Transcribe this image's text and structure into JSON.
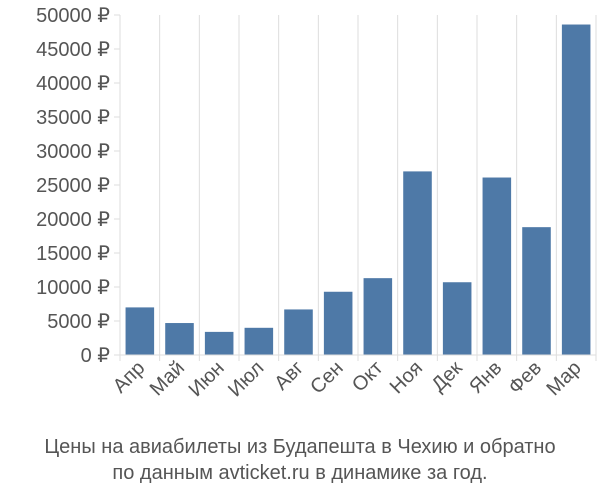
{
  "chart_data": {
    "type": "bar",
    "categories": [
      "Апр",
      "Май",
      "Июн",
      "Июл",
      "Авг",
      "Сен",
      "Окт",
      "Ноя",
      "Дек",
      "Янв",
      "Фев",
      "Мар"
    ],
    "values": [
      7000,
      4700,
      3400,
      4000,
      6700,
      9300,
      11300,
      27000,
      10700,
      26100,
      18800,
      48600
    ],
    "ylim": [
      0,
      50000
    ],
    "y_ticks": [
      0,
      5000,
      10000,
      15000,
      20000,
      25000,
      30000,
      35000,
      40000,
      45000,
      50000
    ],
    "y_tick_labels": [
      "0 ₽",
      "5000 ₽",
      "10000 ₽",
      "15000 ₽",
      "20000 ₽",
      "25000 ₽",
      "30000 ₽",
      "35000 ₽",
      "40000 ₽",
      "45000 ₽",
      "50000 ₽"
    ],
    "grid": "vertical",
    "bar_color": "#4e79a7",
    "axis_text_color": "#555555",
    "grid_color": "#dddddd"
  },
  "caption": {
    "line1": "Цены на авиабилеты из Будапешта в Чехию и обратно",
    "line2": "по данным avticket.ru в динамике за год."
  }
}
